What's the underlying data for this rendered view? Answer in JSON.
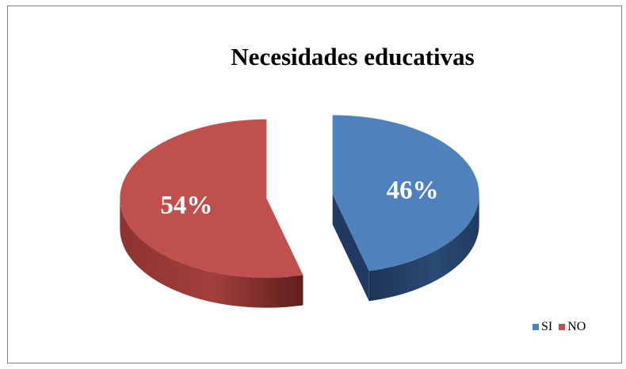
{
  "chart_data": {
    "type": "pie",
    "title": "Necesidades educativas",
    "categories": [
      "SI",
      "NO"
    ],
    "values": [
      46,
      54
    ],
    "data_labels": [
      "46%",
      "54%"
    ],
    "colors": [
      "#4f81bd",
      "#c0504d"
    ],
    "side_colors": [
      "#1f3b61",
      "#7a2a27"
    ],
    "exploded": true,
    "style": "3d",
    "legend_position": "bottom-right"
  }
}
